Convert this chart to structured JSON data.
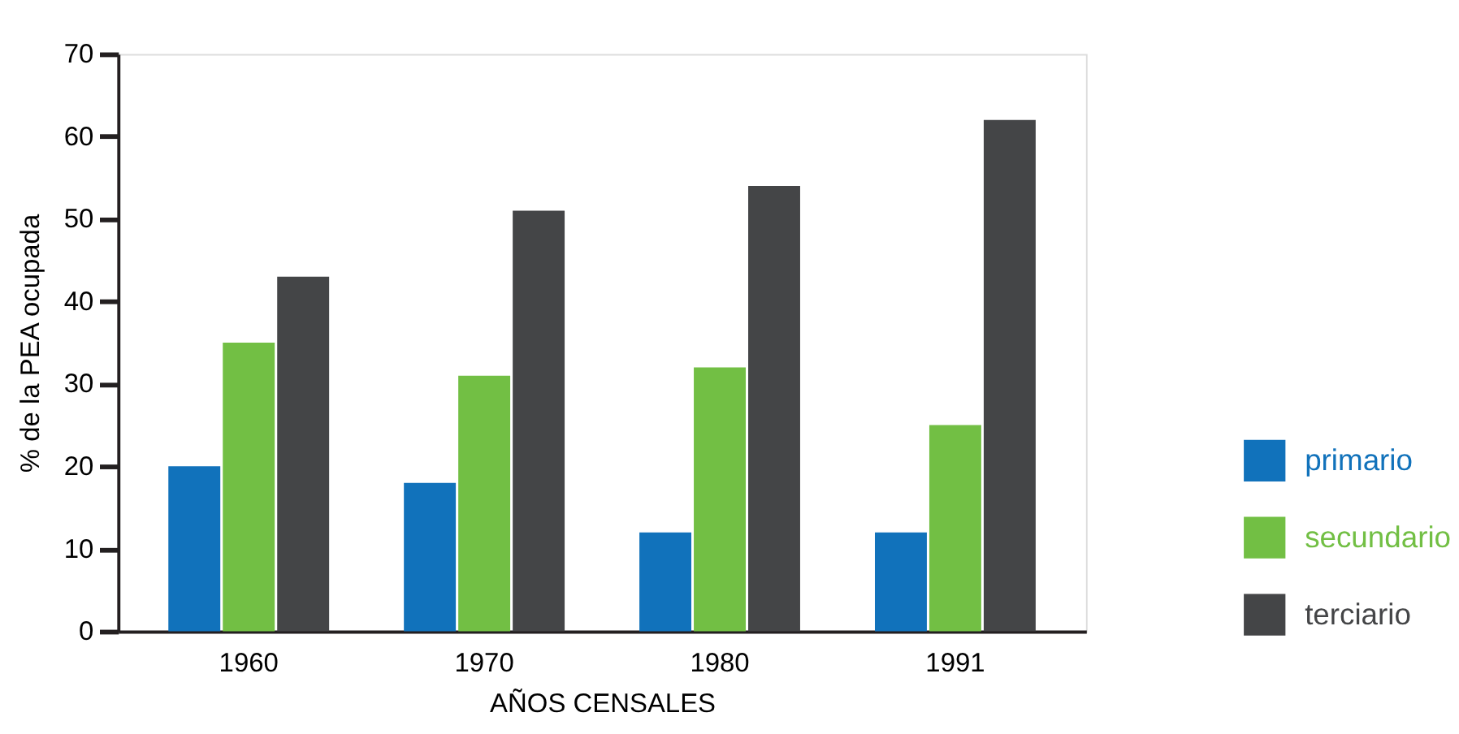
{
  "chart_data": {
    "type": "bar",
    "xlabel": "AÑOS CENSALES",
    "ylabel": "% de la PEA ocupada",
    "categories": [
      "1960",
      "1970",
      "1980",
      "1991"
    ],
    "series": [
      {
        "name": "primario",
        "color": "#1172bb",
        "values": [
          20,
          18,
          12,
          12
        ]
      },
      {
        "name": "secundario",
        "color": "#72bf44",
        "values": [
          35,
          31,
          32,
          25
        ]
      },
      {
        "name": "terciario",
        "color": "#444547",
        "values": [
          43,
          51,
          54,
          62
        ]
      }
    ],
    "ylim": [
      0,
      70
    ],
    "yticks": [
      0,
      10,
      20,
      30,
      40,
      50,
      60,
      70
    ],
    "grid": false,
    "legend": "right"
  }
}
